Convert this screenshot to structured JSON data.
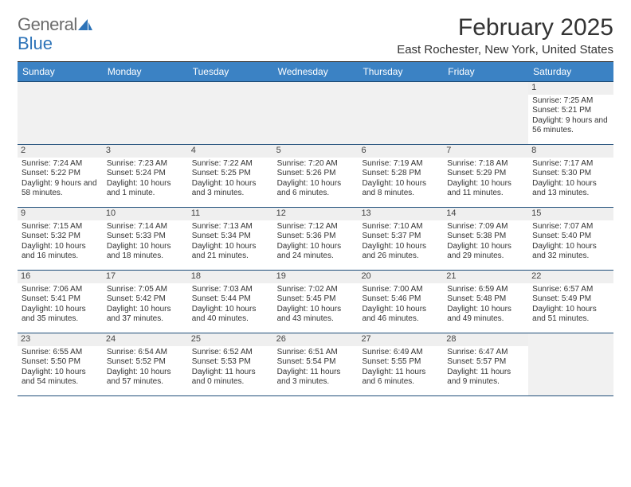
{
  "brand": {
    "part1": "General",
    "part2": "Blue"
  },
  "title": "February 2025",
  "location": "East Rochester, New York, United States",
  "colors": {
    "header_bar": "#3b82c4",
    "rule": "#1f4e79",
    "daynum_bg": "#efefef",
    "empty_bg": "#f1f1f1",
    "brand_gray": "#6b6b6b",
    "brand_blue": "#2d73b8"
  },
  "day_labels": [
    "Sunday",
    "Monday",
    "Tuesday",
    "Wednesday",
    "Thursday",
    "Friday",
    "Saturday"
  ],
  "weeks": [
    [
      {
        "empty": true
      },
      {
        "empty": true
      },
      {
        "empty": true
      },
      {
        "empty": true
      },
      {
        "empty": true
      },
      {
        "empty": true
      },
      {
        "num": "1",
        "sunrise": "Sunrise: 7:25 AM",
        "sunset": "Sunset: 5:21 PM",
        "daylight": "Daylight: 9 hours and 56 minutes."
      }
    ],
    [
      {
        "num": "2",
        "sunrise": "Sunrise: 7:24 AM",
        "sunset": "Sunset: 5:22 PM",
        "daylight": "Daylight: 9 hours and 58 minutes."
      },
      {
        "num": "3",
        "sunrise": "Sunrise: 7:23 AM",
        "sunset": "Sunset: 5:24 PM",
        "daylight": "Daylight: 10 hours and 1 minute."
      },
      {
        "num": "4",
        "sunrise": "Sunrise: 7:22 AM",
        "sunset": "Sunset: 5:25 PM",
        "daylight": "Daylight: 10 hours and 3 minutes."
      },
      {
        "num": "5",
        "sunrise": "Sunrise: 7:20 AM",
        "sunset": "Sunset: 5:26 PM",
        "daylight": "Daylight: 10 hours and 6 minutes."
      },
      {
        "num": "6",
        "sunrise": "Sunrise: 7:19 AM",
        "sunset": "Sunset: 5:28 PM",
        "daylight": "Daylight: 10 hours and 8 minutes."
      },
      {
        "num": "7",
        "sunrise": "Sunrise: 7:18 AM",
        "sunset": "Sunset: 5:29 PM",
        "daylight": "Daylight: 10 hours and 11 minutes."
      },
      {
        "num": "8",
        "sunrise": "Sunrise: 7:17 AM",
        "sunset": "Sunset: 5:30 PM",
        "daylight": "Daylight: 10 hours and 13 minutes."
      }
    ],
    [
      {
        "num": "9",
        "sunrise": "Sunrise: 7:15 AM",
        "sunset": "Sunset: 5:32 PM",
        "daylight": "Daylight: 10 hours and 16 minutes."
      },
      {
        "num": "10",
        "sunrise": "Sunrise: 7:14 AM",
        "sunset": "Sunset: 5:33 PM",
        "daylight": "Daylight: 10 hours and 18 minutes."
      },
      {
        "num": "11",
        "sunrise": "Sunrise: 7:13 AM",
        "sunset": "Sunset: 5:34 PM",
        "daylight": "Daylight: 10 hours and 21 minutes."
      },
      {
        "num": "12",
        "sunrise": "Sunrise: 7:12 AM",
        "sunset": "Sunset: 5:36 PM",
        "daylight": "Daylight: 10 hours and 24 minutes."
      },
      {
        "num": "13",
        "sunrise": "Sunrise: 7:10 AM",
        "sunset": "Sunset: 5:37 PM",
        "daylight": "Daylight: 10 hours and 26 minutes."
      },
      {
        "num": "14",
        "sunrise": "Sunrise: 7:09 AM",
        "sunset": "Sunset: 5:38 PM",
        "daylight": "Daylight: 10 hours and 29 minutes."
      },
      {
        "num": "15",
        "sunrise": "Sunrise: 7:07 AM",
        "sunset": "Sunset: 5:40 PM",
        "daylight": "Daylight: 10 hours and 32 minutes."
      }
    ],
    [
      {
        "num": "16",
        "sunrise": "Sunrise: 7:06 AM",
        "sunset": "Sunset: 5:41 PM",
        "daylight": "Daylight: 10 hours and 35 minutes."
      },
      {
        "num": "17",
        "sunrise": "Sunrise: 7:05 AM",
        "sunset": "Sunset: 5:42 PM",
        "daylight": "Daylight: 10 hours and 37 minutes."
      },
      {
        "num": "18",
        "sunrise": "Sunrise: 7:03 AM",
        "sunset": "Sunset: 5:44 PM",
        "daylight": "Daylight: 10 hours and 40 minutes."
      },
      {
        "num": "19",
        "sunrise": "Sunrise: 7:02 AM",
        "sunset": "Sunset: 5:45 PM",
        "daylight": "Daylight: 10 hours and 43 minutes."
      },
      {
        "num": "20",
        "sunrise": "Sunrise: 7:00 AM",
        "sunset": "Sunset: 5:46 PM",
        "daylight": "Daylight: 10 hours and 46 minutes."
      },
      {
        "num": "21",
        "sunrise": "Sunrise: 6:59 AM",
        "sunset": "Sunset: 5:48 PM",
        "daylight": "Daylight: 10 hours and 49 minutes."
      },
      {
        "num": "22",
        "sunrise": "Sunrise: 6:57 AM",
        "sunset": "Sunset: 5:49 PM",
        "daylight": "Daylight: 10 hours and 51 minutes."
      }
    ],
    [
      {
        "num": "23",
        "sunrise": "Sunrise: 6:55 AM",
        "sunset": "Sunset: 5:50 PM",
        "daylight": "Daylight: 10 hours and 54 minutes."
      },
      {
        "num": "24",
        "sunrise": "Sunrise: 6:54 AM",
        "sunset": "Sunset: 5:52 PM",
        "daylight": "Daylight: 10 hours and 57 minutes."
      },
      {
        "num": "25",
        "sunrise": "Sunrise: 6:52 AM",
        "sunset": "Sunset: 5:53 PM",
        "daylight": "Daylight: 11 hours and 0 minutes."
      },
      {
        "num": "26",
        "sunrise": "Sunrise: 6:51 AM",
        "sunset": "Sunset: 5:54 PM",
        "daylight": "Daylight: 11 hours and 3 minutes."
      },
      {
        "num": "27",
        "sunrise": "Sunrise: 6:49 AM",
        "sunset": "Sunset: 5:55 PM",
        "daylight": "Daylight: 11 hours and 6 minutes."
      },
      {
        "num": "28",
        "sunrise": "Sunrise: 6:47 AM",
        "sunset": "Sunset: 5:57 PM",
        "daylight": "Daylight: 11 hours and 9 minutes."
      },
      {
        "empty": true
      }
    ]
  ]
}
